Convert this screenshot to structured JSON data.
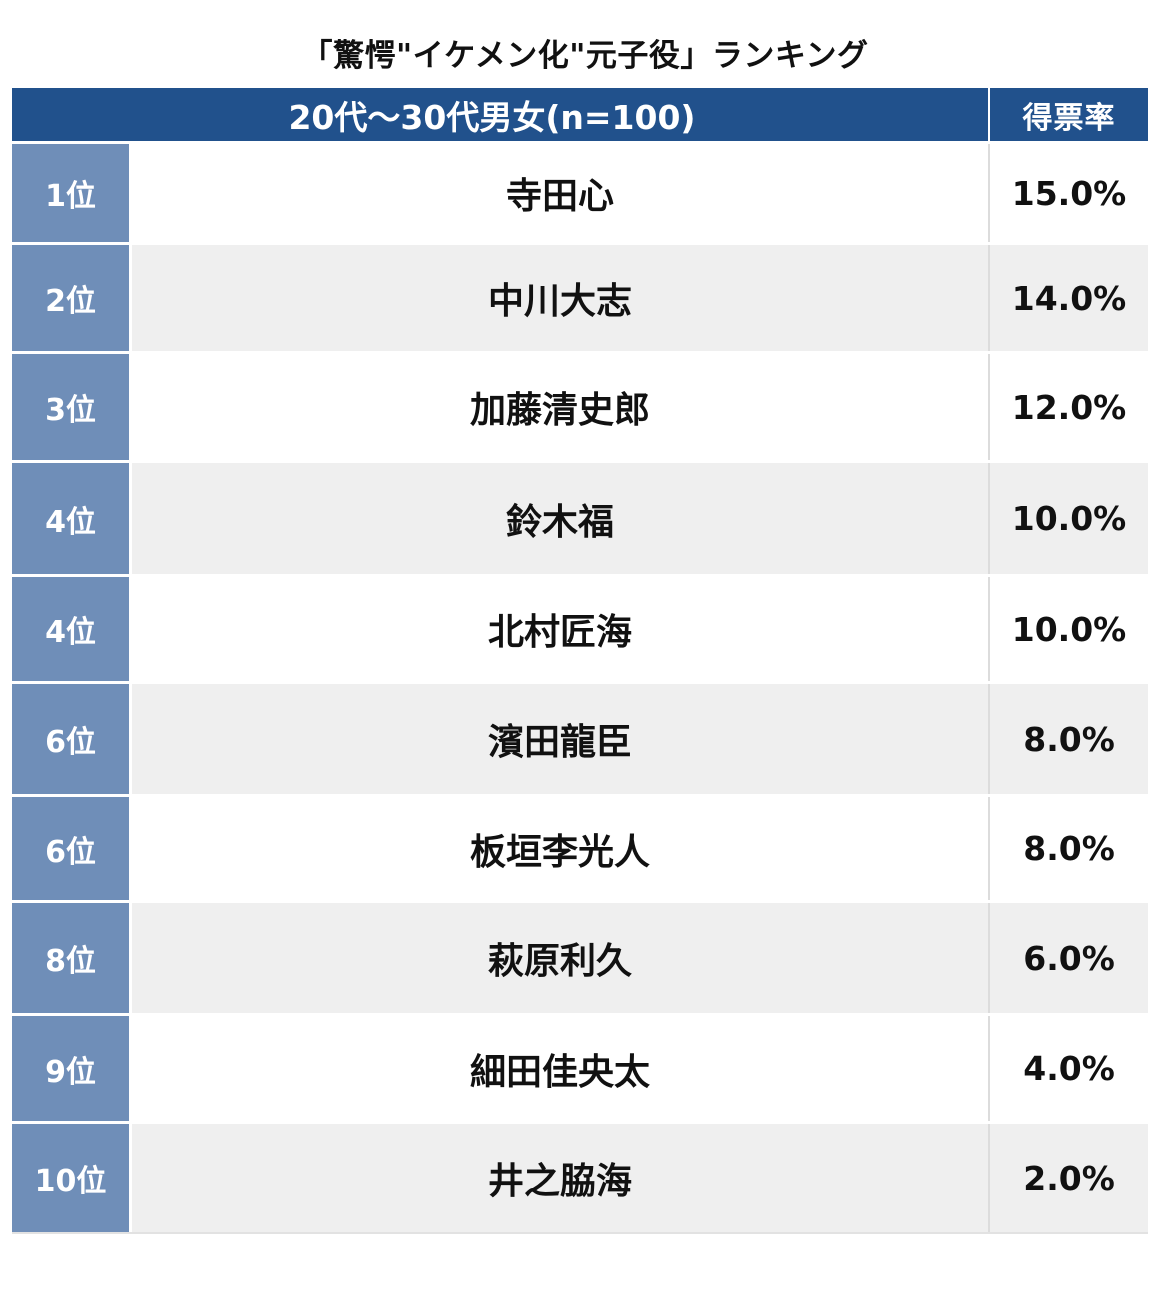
{
  "title": "「驚愕\"イケメン化\"元子役」ランキング",
  "header": {
    "group_label": "20代〜30代男女(n=100)",
    "value_label": "得票率"
  },
  "colors": {
    "header_bg": "#21518c",
    "rank_bg": "#6f8eb8",
    "row_even_bg": "#efefef",
    "row_odd_bg": "#ffffff"
  },
  "chart_data": {
    "type": "table",
    "title": "「驚愕\"イケメン化\"元子役」ランキング",
    "columns": [
      "",
      "20代〜30代男女(n=100)",
      "得票率"
    ],
    "rows": [
      {
        "rank": "1位",
        "name": "寺田心",
        "value": "15.0%"
      },
      {
        "rank": "2位",
        "name": "中川大志",
        "value": "14.0%"
      },
      {
        "rank": "3位",
        "name": "加藤清史郎",
        "value": "12.0%"
      },
      {
        "rank": "4位",
        "name": "鈴木福",
        "value": "10.0%"
      },
      {
        "rank": "4位",
        "name": "北村匠海",
        "value": "10.0%"
      },
      {
        "rank": "6位",
        "name": "濱田龍臣",
        "value": "8.0%"
      },
      {
        "rank": "6位",
        "name": "板垣李光人",
        "value": "8.0%"
      },
      {
        "rank": "8位",
        "name": "萩原利久",
        "value": "6.0%"
      },
      {
        "rank": "9位",
        "name": "細田佳央太",
        "value": "4.0%"
      },
      {
        "rank": "10位",
        "name": "井之脇海",
        "value": "2.0%"
      }
    ]
  }
}
